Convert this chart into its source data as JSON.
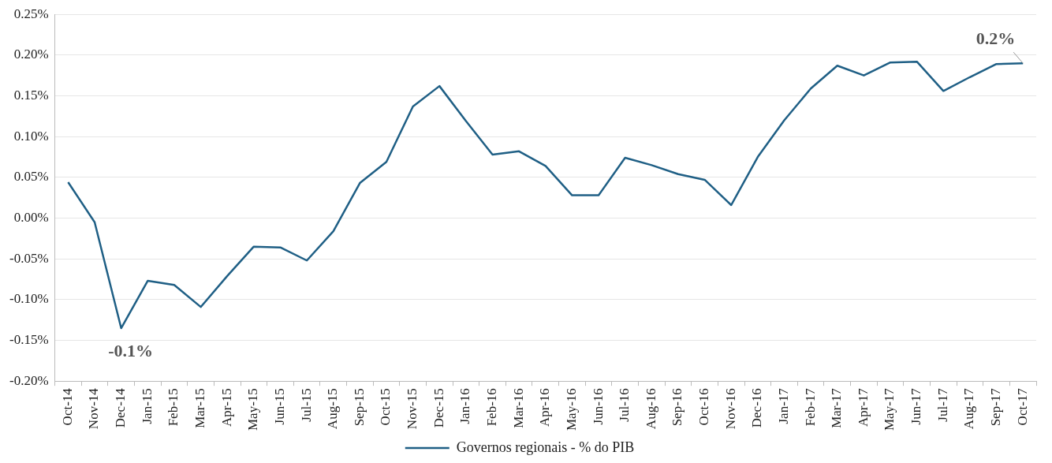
{
  "chart_data": {
    "type": "line",
    "categories": [
      "Oct-14",
      "Nov-14",
      "Dec-14",
      "Jan-15",
      "Feb-15",
      "Mar-15",
      "Apr-15",
      "May-15",
      "Jun-15",
      "Jul-15",
      "Aug-15",
      "Sep-15",
      "Oct-15",
      "Nov-15",
      "Dec-15",
      "Jan-16",
      "Feb-16",
      "Mar-16",
      "Apr-16",
      "May-16",
      "Jun-16",
      "Jul-16",
      "Aug-16",
      "Sep-16",
      "Oct-16",
      "Nov-16",
      "Dec-16",
      "Jan-17",
      "Feb-17",
      "Mar-17",
      "Apr-17",
      "May-17",
      "Jun-17",
      "Jul-17",
      "Aug-17",
      "Sep-17",
      "Oct-17"
    ],
    "series": [
      {
        "name": "Governos regionais - % do PIB",
        "color": "#1f5f85",
        "values": [
          0.044,
          -0.005,
          -0.135,
          -0.077,
          -0.082,
          -0.109,
          -0.071,
          -0.035,
          -0.036,
          -0.052,
          -0.016,
          0.043,
          0.069,
          0.137,
          0.162,
          0.119,
          0.078,
          0.082,
          0.064,
          0.028,
          0.028,
          0.074,
          0.065,
          0.054,
          0.047,
          0.016,
          0.075,
          0.12,
          0.159,
          0.187,
          0.175,
          0.191,
          0.192,
          0.156,
          0.173,
          0.189,
          0.19
        ]
      }
    ],
    "ylim": [
      -0.2,
      0.25
    ],
    "yticks": [
      {
        "value": -0.2,
        "label": "-0.20%"
      },
      {
        "value": -0.15,
        "label": "-0.15%"
      },
      {
        "value": -0.1,
        "label": "-0.10%"
      },
      {
        "value": -0.05,
        "label": "-0.05%"
      },
      {
        "value": 0,
        "label": "0.00%"
      },
      {
        "value": 0.05,
        "label": "0.05%"
      },
      {
        "value": 0.1,
        "label": "0.10%"
      },
      {
        "value": 0.15,
        "label": "0.15%"
      },
      {
        "value": 0.2,
        "label": "0.20%"
      },
      {
        "value": 0.25,
        "label": "0.25%"
      }
    ],
    "grid": "y",
    "legend": "bottom",
    "marker": "none",
    "line_style": "solid",
    "annotations": [
      {
        "text": "-0.1%",
        "x": "Dec-14",
        "y": -0.135
      },
      {
        "text": "0.2%",
        "x": "Oct-17",
        "y": 0.19
      }
    ]
  }
}
